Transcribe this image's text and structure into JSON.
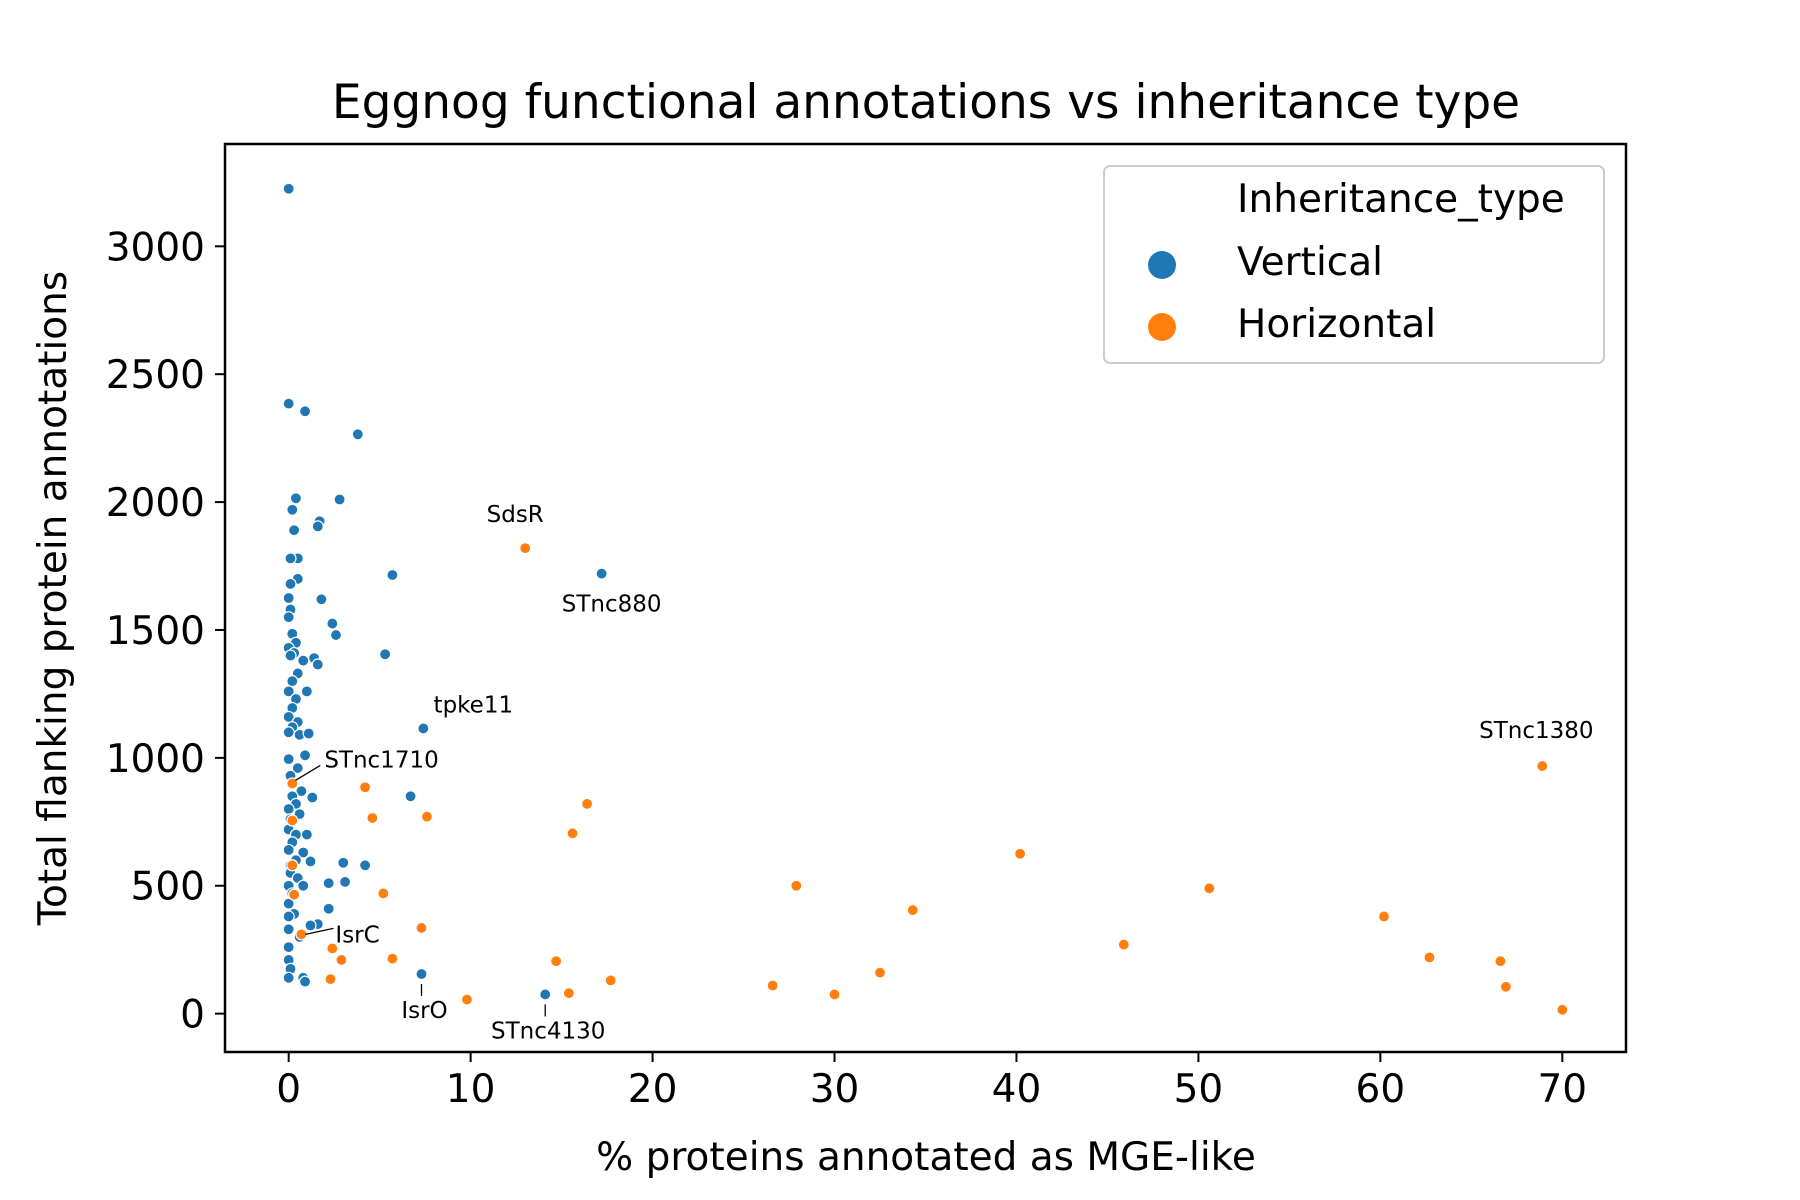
{
  "chart_data": {
    "type": "scatter",
    "title": "Eggnog functional annotations vs inheritance type",
    "xlabel": "% proteins annotated as MGE-like",
    "ylabel": "Total flanking protein annotations",
    "xlim": [
      -3.5,
      73.5
    ],
    "ylim": [
      -150,
      3400
    ],
    "xticks": [
      0,
      10,
      20,
      30,
      40,
      50,
      60,
      70
    ],
    "yticks": [
      0,
      500,
      1000,
      1500,
      2000,
      2500,
      3000
    ],
    "grid": false,
    "legend": {
      "title": "Inheritance_type",
      "placement": "top-right",
      "entries": [
        {
          "label": "Vertical",
          "color": "#1f77b4"
        },
        {
          "label": "Horizontal",
          "color": "#ff7f0e"
        }
      ]
    },
    "series": [
      {
        "name": "Vertical",
        "color": "#1f77b4",
        "points": [
          [
            0,
            3225
          ],
          [
            0,
            2385
          ],
          [
            0.9,
            2355
          ],
          [
            3.8,
            2265
          ],
          [
            0.4,
            2015
          ],
          [
            2.8,
            2010
          ],
          [
            0.2,
            1970
          ],
          [
            1.7,
            1925
          ],
          [
            1.6,
            1905
          ],
          [
            0.3,
            1890
          ],
          [
            0.5,
            1780
          ],
          [
            0.1,
            1780
          ],
          [
            5.7,
            1715
          ],
          [
            17.2,
            1720
          ],
          [
            0.5,
            1700
          ],
          [
            0.1,
            1680
          ],
          [
            0,
            1625
          ],
          [
            1.8,
            1620
          ],
          [
            0.1,
            1580
          ],
          [
            0,
            1550
          ],
          [
            2.4,
            1525
          ],
          [
            2.6,
            1480
          ],
          [
            0.2,
            1485
          ],
          [
            0.4,
            1450
          ],
          [
            0,
            1430
          ],
          [
            0.3,
            1410
          ],
          [
            0.1,
            1400
          ],
          [
            5.3,
            1405
          ],
          [
            0.8,
            1380
          ],
          [
            1.4,
            1390
          ],
          [
            1.6,
            1365
          ],
          [
            0.5,
            1330
          ],
          [
            0.2,
            1300
          ],
          [
            0,
            1260
          ],
          [
            1,
            1260
          ],
          [
            0.4,
            1230
          ],
          [
            0.2,
            1195
          ],
          [
            0,
            1160
          ],
          [
            0.5,
            1140
          ],
          [
            0.2,
            1120
          ],
          [
            0,
            1100
          ],
          [
            0.6,
            1090
          ],
          [
            1.1,
            1095
          ],
          [
            7.4,
            1115
          ],
          [
            0.9,
            1010
          ],
          [
            0,
            995
          ],
          [
            0.5,
            960
          ],
          [
            0.1,
            930
          ],
          [
            0.7,
            870
          ],
          [
            0.2,
            850
          ],
          [
            6.7,
            850
          ],
          [
            1.3,
            845
          ],
          [
            0.4,
            820
          ],
          [
            0,
            800
          ],
          [
            0.6,
            780
          ],
          [
            0.1,
            760
          ],
          [
            0,
            720
          ],
          [
            0.4,
            700
          ],
          [
            1,
            700
          ],
          [
            0.2,
            670
          ],
          [
            0,
            640
          ],
          [
            0.8,
            630
          ],
          [
            0.4,
            600
          ],
          [
            0.1,
            580
          ],
          [
            1.2,
            595
          ],
          [
            3,
            590
          ],
          [
            4.2,
            580
          ],
          [
            0.1,
            550
          ],
          [
            0.5,
            530
          ],
          [
            0,
            500
          ],
          [
            0.8,
            500
          ],
          [
            2.2,
            510
          ],
          [
            3.1,
            515
          ],
          [
            0.2,
            470
          ],
          [
            0,
            430
          ],
          [
            2.2,
            410
          ],
          [
            1.6,
            350
          ],
          [
            0.3,
            390
          ],
          [
            0,
            380
          ],
          [
            1.2,
            345
          ],
          [
            0,
            330
          ],
          [
            0.6,
            300
          ],
          [
            0,
            260
          ],
          [
            0,
            210
          ],
          [
            0.1,
            175
          ],
          [
            7.3,
            155
          ],
          [
            0,
            140
          ],
          [
            0.8,
            140
          ],
          [
            0.9,
            125
          ],
          [
            14.1,
            75
          ]
        ]
      },
      {
        "name": "Horizontal",
        "color": "#ff7f0e",
        "points": [
          [
            13,
            1820
          ],
          [
            68.9,
            968
          ],
          [
            4.2,
            885
          ],
          [
            0.2,
            900
          ],
          [
            16.4,
            820
          ],
          [
            4.6,
            765
          ],
          [
            7.6,
            770
          ],
          [
            0.2,
            755
          ],
          [
            15.6,
            705
          ],
          [
            0.2,
            580
          ],
          [
            40.2,
            625
          ],
          [
            27.9,
            500
          ],
          [
            50.6,
            490
          ],
          [
            5.2,
            470
          ],
          [
            0.3,
            465
          ],
          [
            34.3,
            405
          ],
          [
            60.2,
            380
          ],
          [
            7.3,
            335
          ],
          [
            0.7,
            310
          ],
          [
            45.9,
            270
          ],
          [
            2.4,
            255
          ],
          [
            2.9,
            210
          ],
          [
            5.7,
            215
          ],
          [
            14.7,
            205
          ],
          [
            62.7,
            220
          ],
          [
            66.6,
            205
          ],
          [
            32.5,
            160
          ],
          [
            2.3,
            135
          ],
          [
            17.7,
            130
          ],
          [
            26.6,
            110
          ],
          [
            66.9,
            105
          ],
          [
            15.4,
            80
          ],
          [
            30,
            75
          ],
          [
            9.8,
            55
          ],
          [
            70,
            15
          ]
        ]
      }
    ],
    "annotations": [
      {
        "text": "SdsR",
        "x": 13,
        "y": 1820
      },
      {
        "text": "STnc880",
        "x": 17.2,
        "y": 1720
      },
      {
        "text": "tpke11",
        "x": 7.4,
        "y": 1115
      },
      {
        "text": "STnc1380",
        "x": 68.9,
        "y": 968
      },
      {
        "text": "STnc1710",
        "x": 0.2,
        "y": 900
      },
      {
        "text": "IsrC",
        "x": 0.7,
        "y": 310
      },
      {
        "text": "IsrO",
        "x": 7.3,
        "y": 155
      },
      {
        "text": "STnc4130",
        "x": 14.1,
        "y": 75
      }
    ]
  }
}
